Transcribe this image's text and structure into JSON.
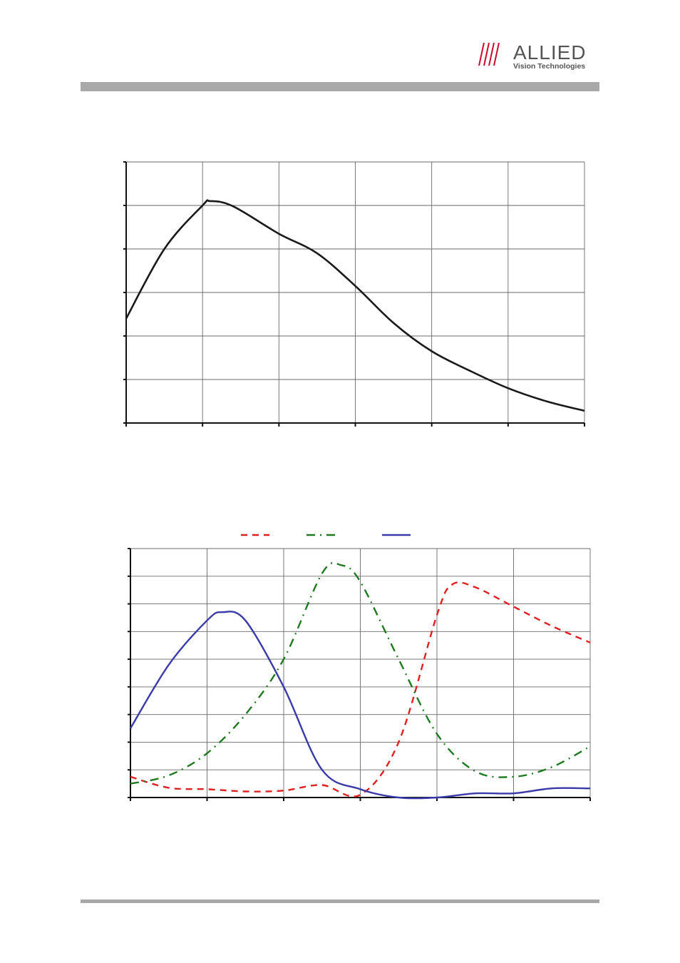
{
  "header": {
    "brand": "ALLIED",
    "tagline": "Vision Technologies",
    "brand_color": "#c8102e",
    "bar_color": "#a8a8a8"
  },
  "chart_data": [
    {
      "type": "line",
      "title": "",
      "xlabel": "",
      "ylabel": "",
      "x_divisions": 6,
      "y_divisions": 6,
      "xlim": [
        0,
        6
      ],
      "ylim": [
        0,
        6
      ],
      "grid": true,
      "series": [
        {
          "color": "#1a1a1a",
          "dash": "solid",
          "points": [
            [
              0.0,
              2.4
            ],
            [
              0.5,
              4.0
            ],
            [
              1.0,
              5.0
            ],
            [
              1.1,
              5.1
            ],
            [
              1.4,
              4.98
            ],
            [
              2.0,
              4.35
            ],
            [
              2.5,
              3.9
            ],
            [
              3.0,
              3.15
            ],
            [
              3.5,
              2.3
            ],
            [
              4.0,
              1.65
            ],
            [
              4.5,
              1.2
            ],
            [
              5.0,
              0.8
            ],
            [
              5.5,
              0.5
            ],
            [
              6.0,
              0.28
            ]
          ]
        }
      ]
    },
    {
      "type": "line",
      "title": "",
      "xlabel": "",
      "ylabel": "",
      "x_divisions": 6,
      "y_divisions": 9,
      "xlim": [
        0,
        6
      ],
      "ylim": [
        0,
        9
      ],
      "grid": true,
      "legend": "top",
      "series": [
        {
          "color": "#e02020",
          "dash": "dashed",
          "points": [
            [
              0.0,
              0.75
            ],
            [
              0.5,
              0.35
            ],
            [
              1.0,
              0.3
            ],
            [
              1.5,
              0.22
            ],
            [
              2.0,
              0.25
            ],
            [
              2.5,
              0.45
            ],
            [
              3.0,
              0.1
            ],
            [
              3.5,
              2.0
            ],
            [
              4.0,
              6.6
            ],
            [
              4.2,
              7.7
            ],
            [
              4.5,
              7.6
            ],
            [
              5.0,
              6.9
            ],
            [
              5.5,
              6.2
            ],
            [
              6.0,
              5.6
            ]
          ]
        },
        {
          "color": "#207a20",
          "dash": "dash-dot",
          "points": [
            [
              0.0,
              0.5
            ],
            [
              0.5,
              0.8
            ],
            [
              1.0,
              1.6
            ],
            [
              1.5,
              3.0
            ],
            [
              2.0,
              5.0
            ],
            [
              2.5,
              8.1
            ],
            [
              2.75,
              8.4
            ],
            [
              3.0,
              7.8
            ],
            [
              3.5,
              5.0
            ],
            [
              4.0,
              2.3
            ],
            [
              4.5,
              0.95
            ],
            [
              5.0,
              0.75
            ],
            [
              5.5,
              1.1
            ],
            [
              6.0,
              1.85
            ]
          ]
        },
        {
          "color": "#3a3aa8",
          "dash": "solid",
          "points": [
            [
              0.0,
              2.5
            ],
            [
              0.5,
              4.8
            ],
            [
              1.0,
              6.4
            ],
            [
              1.2,
              6.7
            ],
            [
              1.5,
              6.4
            ],
            [
              2.0,
              4.0
            ],
            [
              2.5,
              1.0
            ],
            [
              3.0,
              0.3
            ],
            [
              3.5,
              0.0
            ],
            [
              4.0,
              0.0
            ],
            [
              4.5,
              0.15
            ],
            [
              5.0,
              0.15
            ],
            [
              5.5,
              0.33
            ],
            [
              6.0,
              0.33
            ]
          ]
        }
      ]
    }
  ]
}
